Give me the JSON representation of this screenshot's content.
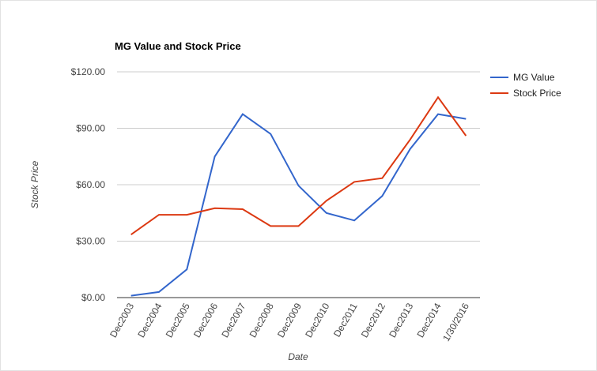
{
  "chart_data": {
    "type": "line",
    "title": "MG Value and Stock Price",
    "x_label": "Date",
    "y_label": "Stock Price",
    "categories": [
      "Dec2003",
      "Dec2004",
      "Dec2005",
      "Dec2006",
      "Dec2007",
      "Dec2008",
      "Dec2009",
      "Dec2010",
      "Dec2011",
      "Dec2012",
      "Dec2013",
      "Dec2014",
      "1/30/2016"
    ],
    "series": [
      {
        "name": "MG Value",
        "color": "#3366cc",
        "values": [
          1,
          3,
          15,
          75,
          97.5,
          87,
          59.5,
          45,
          41,
          54,
          79,
          97.5,
          95
        ]
      },
      {
        "name": "Stock Price",
        "color": "#dc3912",
        "values": [
          33.5,
          44,
          44,
          47.5,
          47,
          38,
          38,
          51.5,
          61.5,
          63.5,
          84,
          106.5,
          86
        ]
      }
    ],
    "ylim": [
      0,
      120
    ],
    "yticks": [
      {
        "value": 0,
        "label": "$0.00"
      },
      {
        "value": 30,
        "label": "$30.00"
      },
      {
        "value": 60,
        "label": "$60.00"
      },
      {
        "value": 90,
        "label": "$90.00"
      },
      {
        "value": 120,
        "label": "$120.00"
      }
    ],
    "grid": true,
    "legend": "right"
  }
}
